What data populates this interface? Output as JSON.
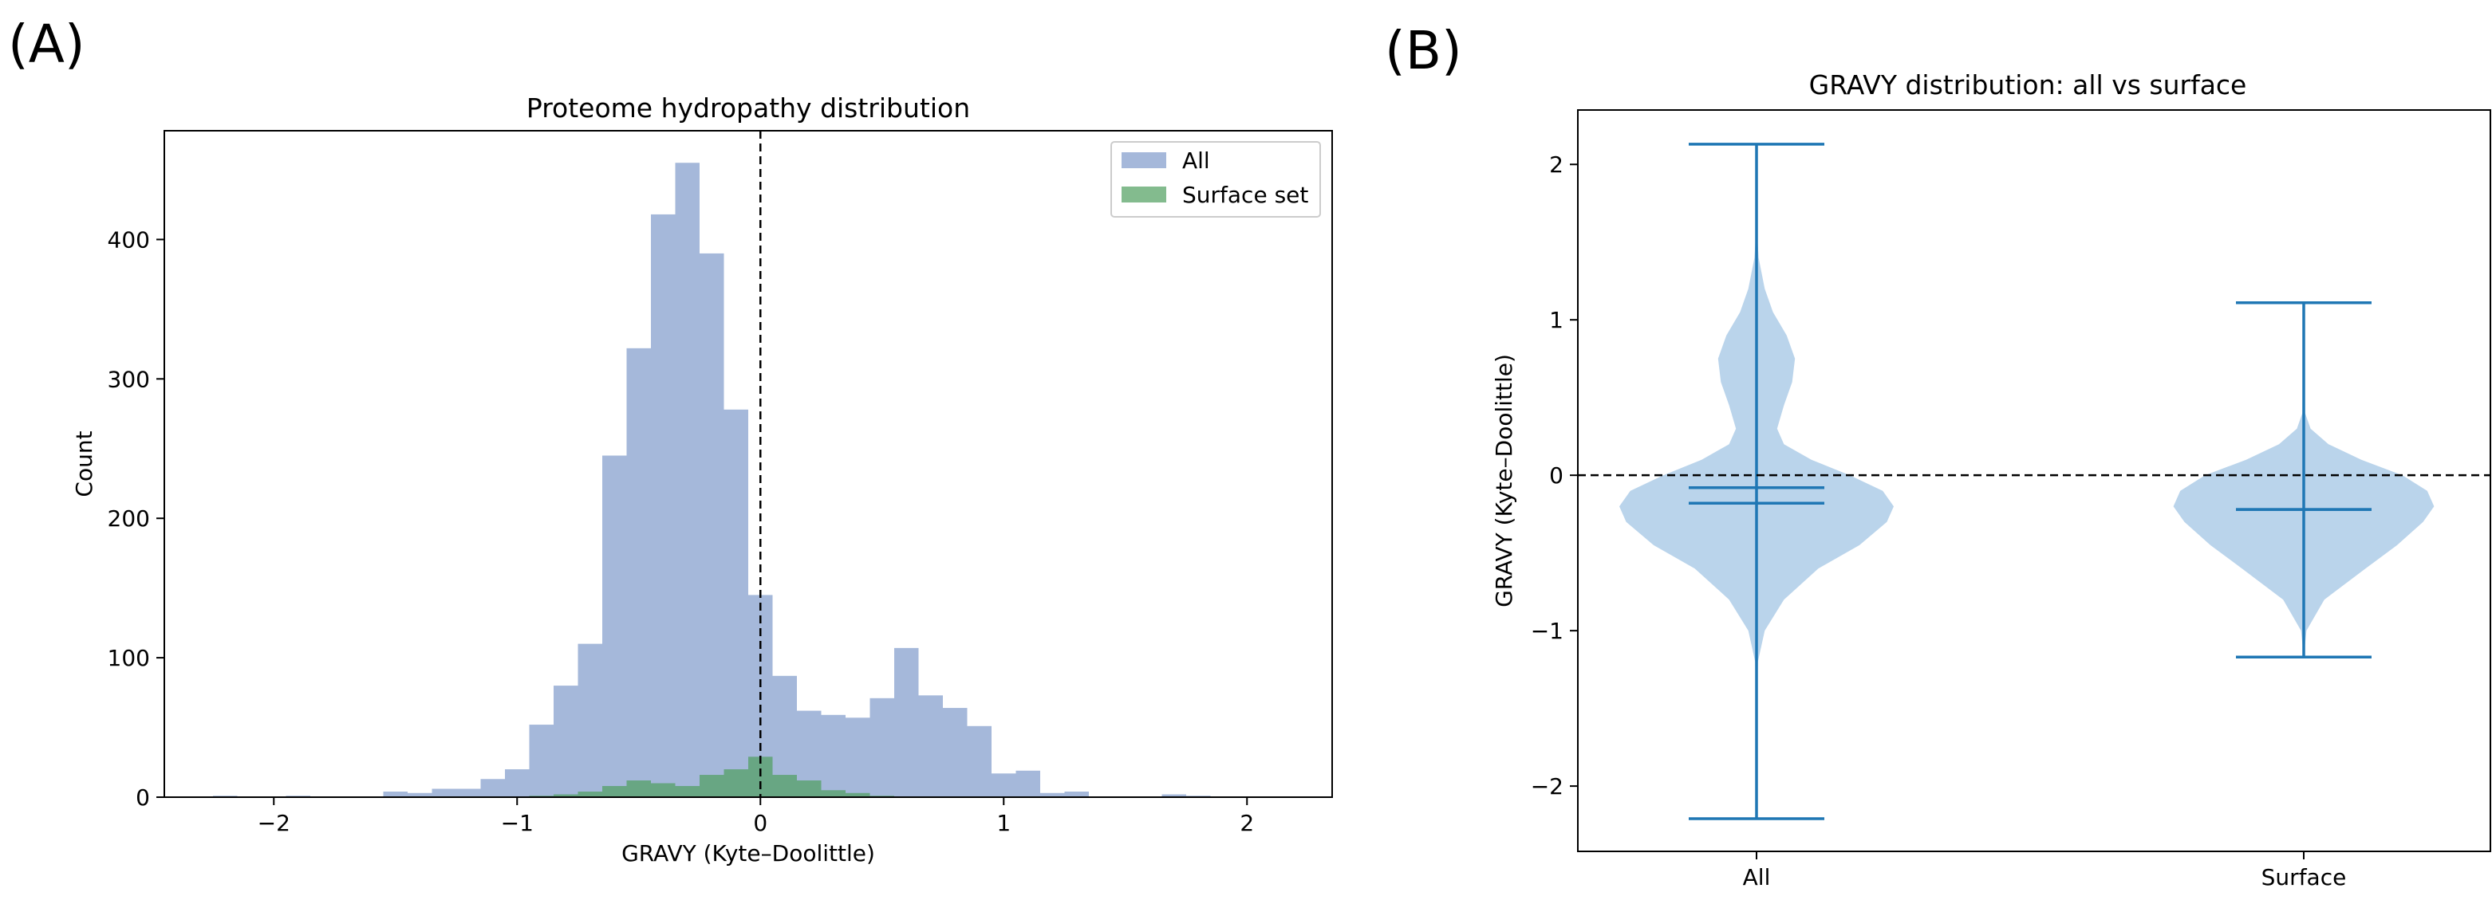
{
  "panels": {
    "a": {
      "label": "(A)",
      "chart_data": {
        "type": "histogram",
        "title": "Proteome hydropathy distribution",
        "xlabel": "GRAVY (Kyte–Doolittle)",
        "ylabel": "Count",
        "xlim": [
          -2.45,
          2.35
        ],
        "ylim": [
          0,
          478
        ],
        "xticks": [
          -2,
          -1,
          0,
          1,
          2
        ],
        "xtick_labels": [
          "−2",
          "−1",
          "0",
          "1",
          "2"
        ],
        "yticks": [
          0,
          100,
          200,
          300,
          400
        ],
        "ytick_labels": [
          "0",
          "100",
          "200",
          "300",
          "400"
        ],
        "bin_start": -2.25,
        "bin_width": 0.1,
        "reference_line": {
          "x": 0,
          "style": "dashed"
        },
        "legend_position": "top-right",
        "series": [
          {
            "name": "All",
            "color": "#7f9acb",
            "opacity": 0.7,
            "values": [
              1,
              0,
              0,
              1,
              0,
              0,
              0,
              4,
              3,
              6,
              6,
              13,
              20,
              52,
              80,
              110,
              245,
              322,
              418,
              455,
              390,
              278,
              145,
              87,
              62,
              59,
              57,
              71,
              107,
              73,
              64,
              51,
              17,
              19,
              3,
              4,
              0,
              0,
              0,
              2,
              1,
              0,
              0,
              0,
              0
            ]
          },
          {
            "name": "Surface set",
            "color": "#4e9e5e",
            "opacity": 0.7,
            "values": [
              0,
              0,
              0,
              0,
              0,
              0,
              0,
              0,
              0,
              0,
              0,
              0,
              0,
              1,
              2,
              4,
              8,
              12,
              10,
              8,
              16,
              20,
              29,
              16,
              12,
              5,
              3,
              1,
              0,
              0,
              0,
              0,
              0,
              0,
              0,
              0,
              0,
              0,
              0,
              0,
              0,
              0,
              0,
              0,
              0
            ]
          }
        ]
      }
    },
    "b": {
      "label": "(B)",
      "chart_data": {
        "type": "violin",
        "title": "GRAVY distribution: all vs surface",
        "ylabel": "GRAVY (Kyte–Doolittle)",
        "xlabel": "",
        "ylim": [
          -2.42,
          2.35
        ],
        "yticks": [
          -2,
          -1,
          0,
          1,
          2
        ],
        "ytick_labels": [
          "−2",
          "−1",
          "0",
          "1",
          "2"
        ],
        "categories": [
          "All",
          "Surface"
        ],
        "color": "#1f77b4",
        "fill_color": "#aecde7",
        "reference_line": {
          "y": 0,
          "style": "dashed"
        },
        "groups": [
          {
            "name": "All",
            "min": -2.21,
            "max": 2.13,
            "mean": -0.08,
            "median": -0.18,
            "density": [
              [
                -2.21,
                0
              ],
              [
                -1.6,
                0.003
              ],
              [
                -1.2,
                0.01
              ],
              [
                -1.0,
                0.06
              ],
              [
                -0.8,
                0.2
              ],
              [
                -0.6,
                0.45
              ],
              [
                -0.45,
                0.75
              ],
              [
                -0.3,
                0.95
              ],
              [
                -0.2,
                1.0
              ],
              [
                -0.1,
                0.92
              ],
              [
                0,
                0.68
              ],
              [
                0.1,
                0.4
              ],
              [
                0.2,
                0.2
              ],
              [
                0.3,
                0.15
              ],
              [
                0.45,
                0.2
              ],
              [
                0.6,
                0.26
              ],
              [
                0.75,
                0.28
              ],
              [
                0.9,
                0.22
              ],
              [
                1.05,
                0.12
              ],
              [
                1.2,
                0.06
              ],
              [
                1.4,
                0.015
              ],
              [
                1.6,
                0.002
              ],
              [
                2.13,
                0
              ]
            ]
          },
          {
            "name": "Surface",
            "min": -1.17,
            "max": 1.11,
            "mean": -0.22,
            "median": -0.22,
            "density": [
              [
                -1.17,
                0
              ],
              [
                -1.0,
                0.02
              ],
              [
                -0.8,
                0.15
              ],
              [
                -0.6,
                0.45
              ],
              [
                -0.45,
                0.68
              ],
              [
                -0.3,
                0.87
              ],
              [
                -0.2,
                0.95
              ],
              [
                -0.1,
                0.9
              ],
              [
                0,
                0.72
              ],
              [
                0.1,
                0.42
              ],
              [
                0.2,
                0.18
              ],
              [
                0.3,
                0.05
              ],
              [
                0.4,
                0.01
              ],
              [
                1.11,
                0
              ]
            ]
          }
        ]
      }
    }
  }
}
